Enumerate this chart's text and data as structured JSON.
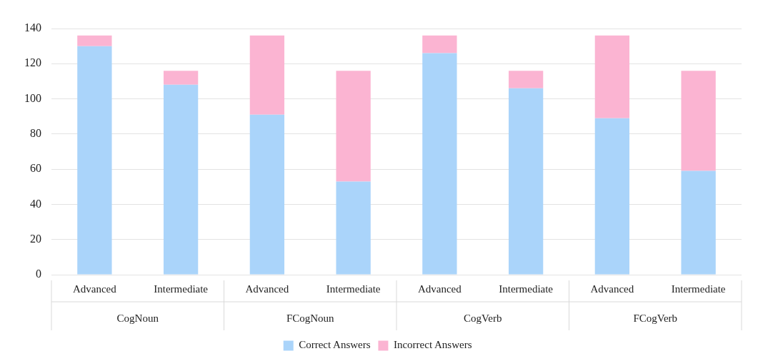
{
  "chart_data": {
    "type": "bar",
    "stacked": true,
    "categories": [
      "Advanced",
      "Intermediate",
      "Advanced",
      "Intermediate",
      "Advanced",
      "Intermediate",
      "Advanced",
      "Intermediate"
    ],
    "series": [
      {
        "name": "Correct Answers",
        "color": "#aad4fa",
        "values": [
          130,
          108,
          91,
          53,
          126,
          106,
          89,
          59
        ]
      },
      {
        "name": "Incorrect Answers",
        "color": "#fbb4d2",
        "values": [
          6,
          8,
          45,
          63,
          10,
          10,
          47,
          57
        ]
      }
    ],
    "annotations": [
      "CogNoun",
      "FCogNoun",
      "CogVerb",
      "FCogVerb"
    ],
    "ylim": [
      0,
      140
    ],
    "yticks": [
      0,
      20,
      40,
      60,
      80,
      100,
      120,
      140
    ],
    "grid": "y",
    "legend": "bottom"
  }
}
